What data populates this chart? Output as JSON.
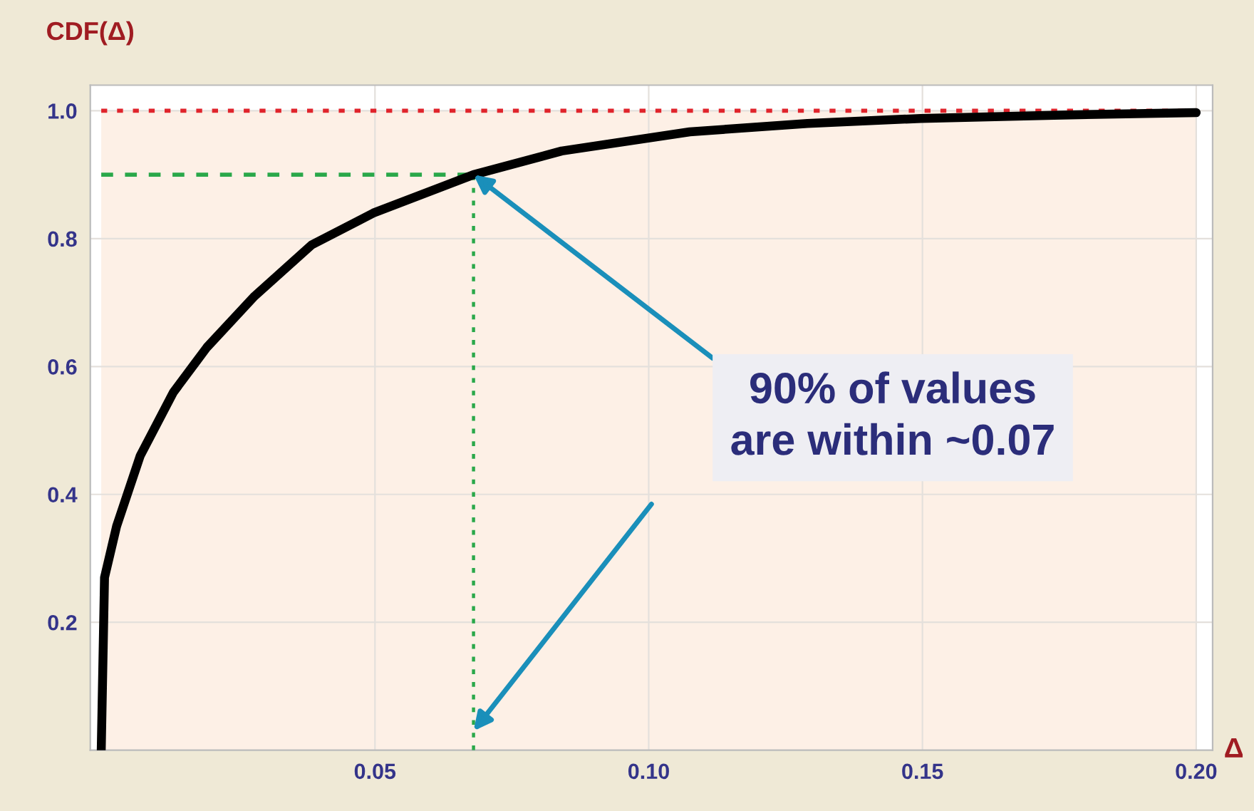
{
  "chart_data": {
    "type": "line",
    "xlabel": "Δ",
    "ylabel": "CDF(Δ)",
    "x": [
      0,
      0.0006,
      0.0028,
      0.0071,
      0.0132,
      0.0193,
      0.028,
      0.0384,
      0.0497,
      0.068,
      0.0841,
      0.1075,
      0.129,
      0.1497,
      0.174,
      0.2
    ],
    "series": [
      {
        "color": "#000000",
        "values": [
          0,
          0.27,
          0.35,
          0.46,
          0.56,
          0.63,
          0.71,
          0.79,
          0.84,
          0.9,
          0.937,
          0.967,
          0.98,
          0.988,
          0.993,
          0.997
        ]
      }
    ],
    "xlim": [
      -0.002,
      0.203
    ],
    "ylim": [
      0,
      1.04
    ],
    "xticks": [
      0.05,
      {
        "value": 0.1,
        "label": "0.10"
      },
      0.15,
      {
        "value": 0.2,
        "label": "0.20"
      }
    ],
    "yticks": [
      0.2,
      0.4,
      0.6,
      0.8,
      {
        "value": 1.0,
        "label": "1.0"
      }
    ],
    "grid": true,
    "line_style": "solid",
    "marker": "none",
    "ref_lines": [
      {
        "axis": "y",
        "value": 1.0,
        "color": "#e0242c",
        "line_style": "dotted"
      },
      {
        "axis": "y",
        "value": 0.9,
        "color": "#2aa84a",
        "line_style": "dashed"
      },
      {
        "axis": "x",
        "value": 0.068,
        "color": "#2aa84a",
        "line_style": "dotted"
      }
    ],
    "bands": [
      {
        "axis": "y",
        "from": 0,
        "to": 1.0,
        "color": "#fdf0e6"
      }
    ],
    "annotations": [
      {
        "text": "90% of values\nare within ~0.07",
        "x": 0.068,
        "y": 0.9
      }
    ]
  }
}
